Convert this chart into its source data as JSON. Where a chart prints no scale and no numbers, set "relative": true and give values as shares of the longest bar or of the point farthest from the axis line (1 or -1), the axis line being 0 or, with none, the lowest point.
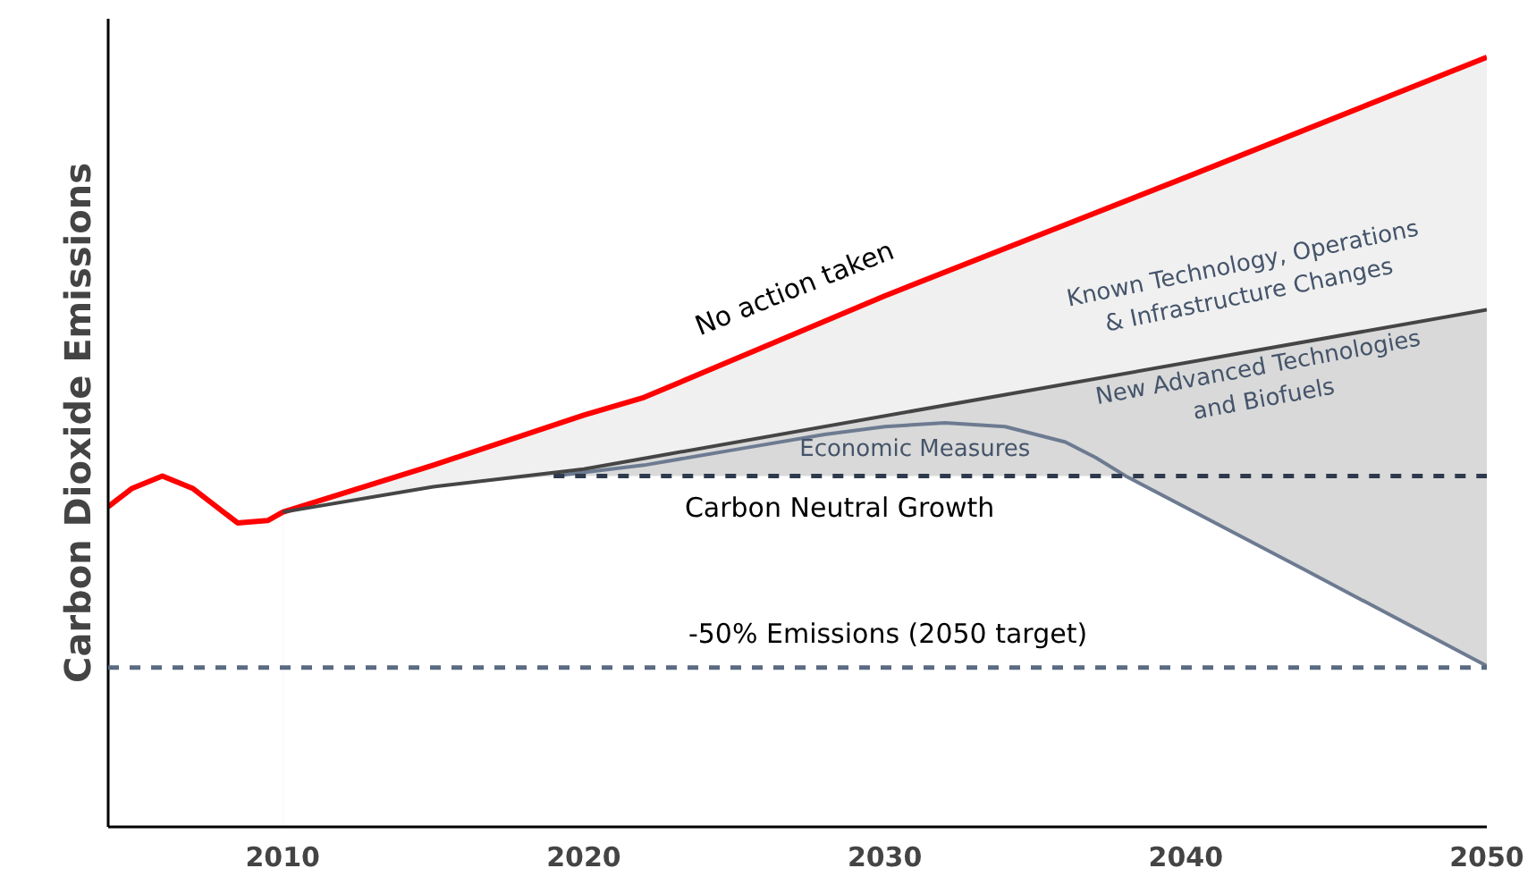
{
  "chart_data": {
    "type": "line",
    "relative": true,
    "ylabel": "Carbon Dioxide Emissions",
    "xlim": [
      2004.2,
      2050
    ],
    "xticks": [
      2010,
      2020,
      2030,
      2040,
      2050
    ],
    "grid": false,
    "tick_labels": "x",
    "series": [
      {
        "type": "area",
        "color": "#f0f0f0",
        "x": [
          2010,
          2015,
          2020,
          2022,
          2030,
          2040,
          2050
        ],
        "values": [
          0.409,
          0.47,
          0.535,
          0.558,
          0.69,
          0.844,
          1.0
        ]
      },
      {
        "type": "area",
        "color": "#d9d9d9",
        "line_style": "solid",
        "x": [
          2010,
          2015,
          2020,
          2050
        ],
        "values": [
          0.409,
          0.442,
          0.465,
          0.672
        ]
      },
      {
        "type": "area",
        "color": "#ffffff",
        "x": [
          2010,
          2015,
          2019,
          2038,
          2044,
          2050
        ],
        "values": [
          0.409,
          0.442,
          0.456,
          0.456,
          0.333,
          0.209
        ]
      },
      {
        "color": "#6d7b91",
        "line_style": "solid",
        "x": [
          2019,
          2022,
          2025,
          2028,
          2030,
          2032,
          2034,
          2036,
          2037,
          2038,
          2044,
          2050
        ],
        "values": [
          0.456,
          0.47,
          0.49,
          0.51,
          0.52,
          0.525,
          0.52,
          0.5,
          0.48,
          0.456,
          0.333,
          0.209
        ]
      },
      {
        "color": "#2e3a4c",
        "line_style": "dashed",
        "x": [
          2019,
          2050
        ],
        "values": [
          0.456,
          0.456
        ]
      },
      {
        "color": "#ff0000",
        "line_style": "solid",
        "x": [
          2004.2,
          2005,
          2006,
          2007,
          2008.5,
          2009.5,
          2010,
          2015,
          2020,
          2022,
          2030,
          2040,
          2050
        ],
        "values": [
          0.416,
          0.44,
          0.456,
          0.44,
          0.395,
          0.398,
          0.409,
          0.47,
          0.535,
          0.558,
          0.69,
          0.844,
          1.0
        ]
      }
    ],
    "ref_lines": [
      {
        "axis": "y",
        "value": 0.207,
        "label": "-50% Emissions (2050 target)",
        "color": "#5a6a82",
        "line_style": "dashed"
      }
    ],
    "annotations": [
      "No action taken",
      "Known Technology, Operations\n& Infrastructure Changes",
      "New Advanced Technologies\nand Biofuels",
      "Economic Measures",
      "Carbon Neutral Growth"
    ]
  }
}
